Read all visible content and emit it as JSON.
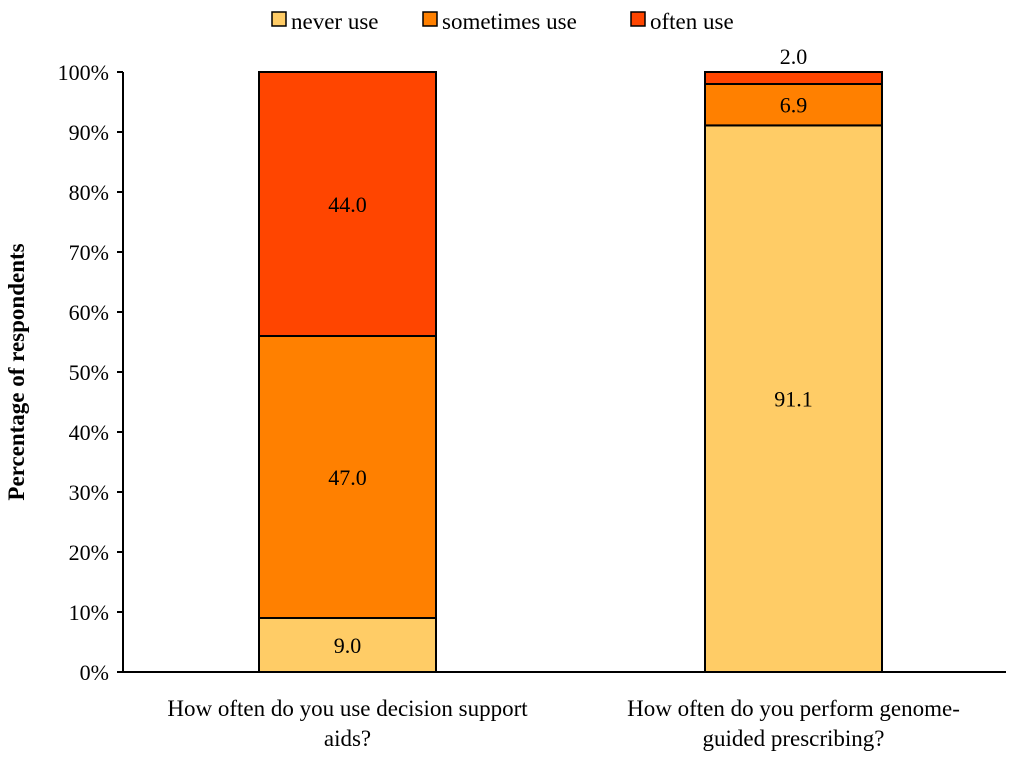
{
  "chart_data": {
    "type": "bar",
    "stacked": true,
    "categories": [
      [
        "How often do you use decision support",
        "aids?"
      ],
      [
        "How often do you perform genome-",
        "guided prescribing?"
      ]
    ],
    "series": [
      {
        "name": "never use",
        "color": "#FFCC66",
        "values": [
          9.0,
          91.1
        ],
        "labels": [
          "9.0",
          "91.1"
        ]
      },
      {
        "name": "sometimes use",
        "color": "#FF8000",
        "values": [
          47.0,
          6.9
        ],
        "labels": [
          "47.0",
          "6.9"
        ]
      },
      {
        "name": "often use",
        "color": "#FF4500",
        "values": [
          44.0,
          2.0
        ],
        "labels": [
          "44.0",
          "2.0"
        ]
      }
    ],
    "ylabel": "Percentage of respondents",
    "xlabel": "",
    "ylim": [
      0,
      100
    ],
    "yticks": [
      "0%",
      "10%",
      "20%",
      "30%",
      "40%",
      "50%",
      "60%",
      "70%",
      "80%",
      "90%",
      "100%"
    ],
    "grid": false,
    "legend": "top-center"
  }
}
